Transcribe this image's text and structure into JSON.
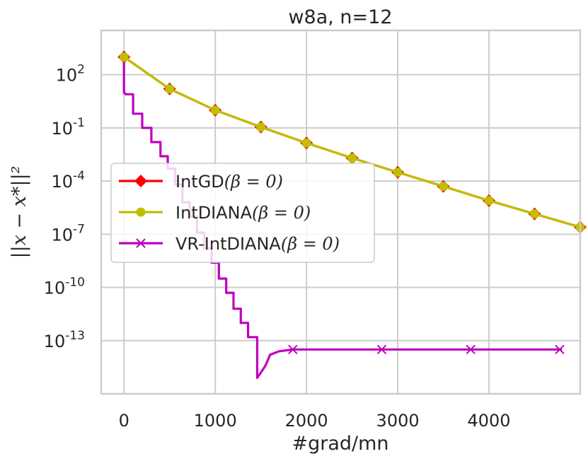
{
  "chart_data": {
    "type": "line",
    "title": "w8a, n=12",
    "xlabel": "#grad/mn",
    "ylabel": "||x − x*||²",
    "yscale": "log",
    "xlim": [
      -250,
      5000
    ],
    "ylog_range": [
      -16.0,
      4.5
    ],
    "x_ticks": [
      0,
      1000,
      2000,
      3000,
      4000
    ],
    "x_tick_labels": [
      "0",
      "1000",
      "2000",
      "3000",
      "4000"
    ],
    "y_ticks": [
      {
        "exp": 2,
        "base": "10",
        "sup": "2"
      },
      {
        "exp": -1,
        "base": "10",
        "sup": "-1"
      },
      {
        "exp": -4,
        "base": "10",
        "sup": "-4"
      },
      {
        "exp": -7,
        "base": "10",
        "sup": "-7"
      },
      {
        "exp": -10,
        "base": "10",
        "sup": "-10"
      },
      {
        "exp": -13,
        "base": "10",
        "sup": "-13"
      }
    ],
    "grid": true,
    "legend_position": "center-left",
    "series": [
      {
        "name": "IntGD",
        "legend_suffix": "(β = 0)",
        "color": "#ff0000",
        "marker": "diamond",
        "x": [
          0,
          500,
          1000,
          1500,
          2000,
          2500,
          3000,
          3500,
          4000,
          4500,
          5000
        ],
        "log10_y": [
          3.0,
          1.2,
          0.0,
          -0.95,
          -1.85,
          -2.7,
          -3.5,
          -4.3,
          -5.1,
          -5.85,
          -6.6
        ]
      },
      {
        "name": "IntDIANA",
        "legend_suffix": "(β = 0)",
        "color": "#bfbf00",
        "marker": "circle",
        "x": [
          0,
          500,
          1000,
          1500,
          2000,
          2500,
          3000,
          3500,
          4000,
          4500,
          5000
        ],
        "log10_y": [
          3.0,
          1.2,
          0.0,
          -0.95,
          -1.85,
          -2.7,
          -3.5,
          -4.3,
          -5.1,
          -5.85,
          -6.6
        ]
      },
      {
        "name": "VR-IntDIANA",
        "legend_suffix": "(β = 0)",
        "color": "#bf00bf",
        "marker": "x",
        "x": [
          0,
          0,
          20,
          100,
          100,
          200,
          200,
          300,
          300,
          400,
          400,
          480,
          480,
          560,
          560,
          640,
          640,
          720,
          720,
          800,
          800,
          880,
          880,
          960,
          960,
          1040,
          1040,
          1120,
          1120,
          1200,
          1200,
          1280,
          1280,
          1360,
          1360,
          1460,
          1460,
          1540,
          1560,
          1600,
          1700,
          1850,
          2000,
          2500,
          3000,
          3500,
          4000,
          4500,
          4800
        ],
        "log10_y": [
          3.0,
          1.0,
          0.9,
          0.9,
          -0.2,
          -0.2,
          -1.0,
          -1.0,
          -1.8,
          -1.8,
          -2.6,
          -2.6,
          -3.3,
          -3.3,
          -4.2,
          -4.2,
          -5.2,
          -5.2,
          -6.0,
          -6.0,
          -6.9,
          -6.9,
          -7.8,
          -7.8,
          -8.6,
          -8.6,
          -9.5,
          -9.5,
          -10.3,
          -10.3,
          -11.2,
          -11.2,
          -12.0,
          -12.0,
          -12.8,
          -12.8,
          -15.1,
          -14.5,
          -14.3,
          -13.8,
          -13.6,
          -13.5,
          -13.5,
          -13.5,
          -13.5,
          -13.5,
          -13.5,
          -13.5,
          -13.5
        ],
        "marker_x": [
          1850,
          2825,
          3800,
          4775
        ],
        "marker_log10_y": [
          -13.5,
          -13.5,
          -13.5,
          -13.5
        ]
      }
    ]
  }
}
